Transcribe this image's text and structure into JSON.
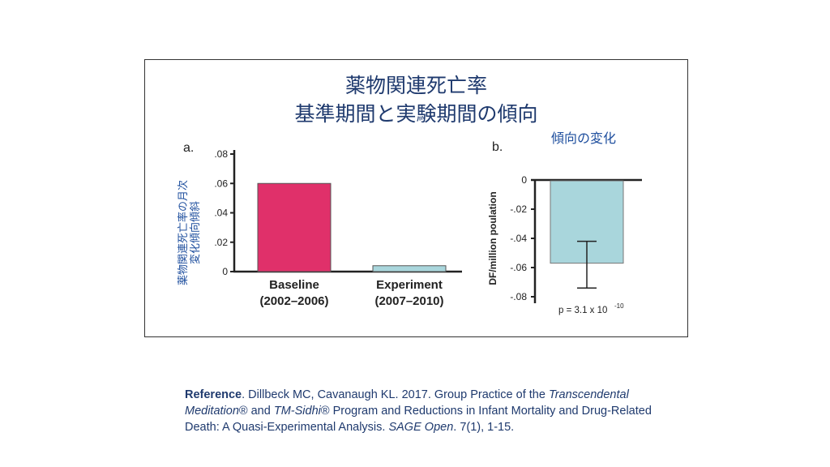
{
  "title_line1": "薬物関連死亡率",
  "title_line2": "基準期間と実験期間の傾向",
  "chart_data": [
    {
      "type": "bar",
      "panel_label": "a.",
      "categories": [
        "Baseline\n(2002–2006)",
        "Experiment\n(2007–2010)"
      ],
      "category_lines": [
        [
          "Baseline",
          "(2002–2006)"
        ],
        [
          "Experiment",
          "(2007–2010)"
        ]
      ],
      "values": [
        0.06,
        0.004
      ],
      "colors": [
        "#e0306a",
        "#a9d6dc"
      ],
      "ylabel_lines": [
        "薬物関連死亡率の月次",
        "変化傾向傾斜"
      ],
      "ylim": [
        0,
        0.08
      ],
      "yticks": [
        0,
        0.02,
        0.04,
        0.06,
        0.08
      ],
      "ytick_labels": [
        "0",
        ".02",
        ".04",
        ".06",
        ".08"
      ],
      "grid": false
    },
    {
      "type": "bar",
      "panel_label": "b.",
      "title": "傾向の変化",
      "values": [
        -0.057
      ],
      "error": {
        "low": -0.074,
        "high": -0.042
      },
      "colors": [
        "#a9d6dc"
      ],
      "ylabel": "DF/million poulation",
      "ylim": [
        -0.08,
        0
      ],
      "yticks": [
        0,
        -0.02,
        -0.04,
        -0.06,
        -0.08
      ],
      "ytick_labels": [
        "0",
        "-.02",
        "-.04",
        "-.06",
        "-.08"
      ],
      "annotation_base": "p = 3.1 x 10",
      "annotation_exp": "-10",
      "grid": false
    }
  ],
  "reference": {
    "label": "Reference",
    "p1": ". Dillbeck MC, Cavanaugh KL. 2017. Group Practice of the ",
    "i1": "Transcendental Meditation",
    "p2": "® and ",
    "i2": "TM-Sidhi",
    "p3": "® Program  and Reductions in Infant Mortality and  Drug-Related Death: A  Quasi-Experimental Analysis. ",
    "i3": "SAGE Open",
    "p4": ". 7(1), 1-15."
  }
}
